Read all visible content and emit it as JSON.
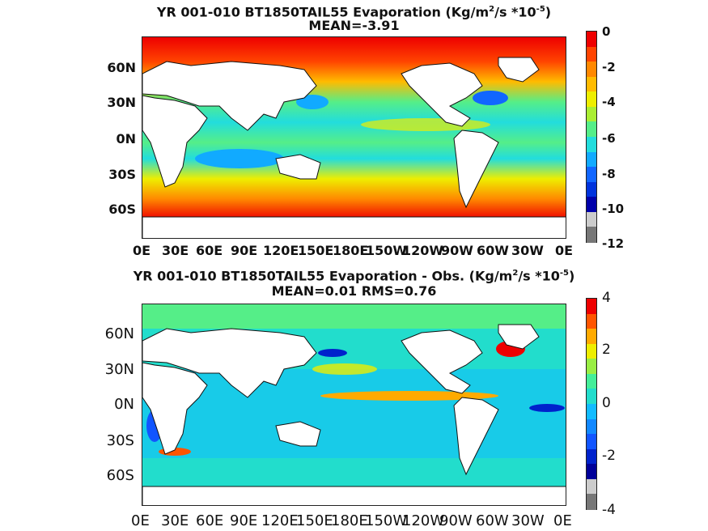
{
  "panel1": {
    "title_main": "YR 001-010 BT1850TAIL55  Evaporation (Kg/m",
    "title_sup1": "2",
    "title_mid": "/s *10",
    "title_sup2": "-5",
    "title_end": ")",
    "subtitle": "MEAN=-3.91",
    "lat_labels": [
      "60N",
      "30N",
      "0N",
      "30S",
      "60S"
    ],
    "lon_labels": [
      "0E",
      "30E",
      "60E",
      "90E",
      "120E",
      "150E",
      "180E",
      "150W",
      "120W",
      "90W",
      "60W",
      "30W",
      "0E"
    ],
    "colorbar_ticks": [
      "0",
      "-2",
      "-4",
      "-6",
      "-8",
      "-10",
      "-12"
    ],
    "colorbar_colors": [
      "#ee0000",
      "#ff4400",
      "#ff8800",
      "#ffbb00",
      "#eeee00",
      "#aaee33",
      "#55ee88",
      "#22dddd",
      "#11aaff",
      "#1166ff",
      "#0033dd",
      "#0000aa",
      "#cccccc",
      "#777777"
    ]
  },
  "panel2": {
    "title_main": "YR 001-010 BT1850TAIL55 Evaporation - Obs. (Kg/m",
    "title_sup1": "2",
    "title_mid": "/s *10",
    "title_sup2": "-5",
    "title_end": ")",
    "subtitle": "MEAN=0.01   RMS=0.76",
    "lat_labels": [
      "60N",
      "30N",
      "0N",
      "30S",
      "60S"
    ],
    "lon_labels": [
      "0E",
      "30E",
      "60E",
      "90E",
      "120E",
      "150E",
      "180E",
      "150W",
      "120W",
      "90W",
      "60W",
      "30W",
      "0E"
    ],
    "colorbar_ticks": [
      "4",
      "2",
      "0",
      "-2",
      "-4"
    ],
    "colorbar_colors": [
      "#ee0000",
      "#ff5500",
      "#ffaa00",
      "#eeee00",
      "#99ee44",
      "#44ee99",
      "#22ddcc",
      "#11bbff",
      "#1188ff",
      "#1155ff",
      "#0022cc",
      "#000099",
      "#cccccc",
      "#777777"
    ]
  }
}
